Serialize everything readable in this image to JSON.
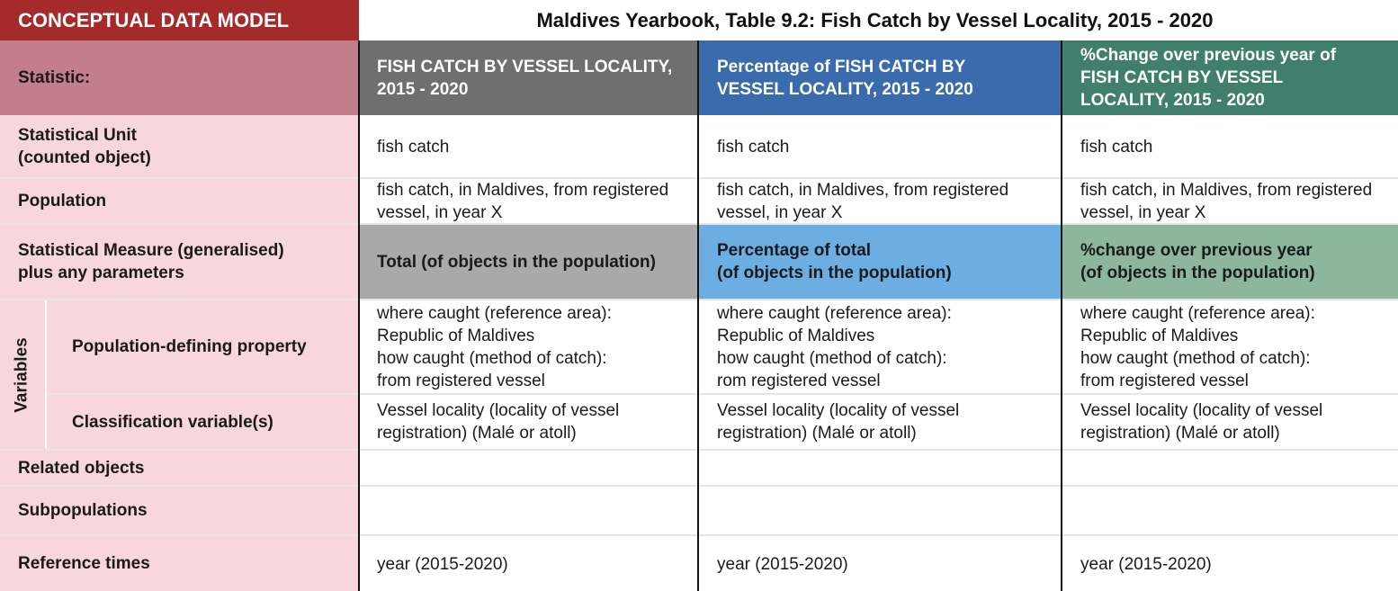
{
  "header": {
    "model_label": "CONCEPTUAL DATA MODEL",
    "title": "Maldives Yearbook, Table 9.2: Fish Catch by Vessel Locality, 2015 - 2020"
  },
  "colors": {
    "header_red": "#a52a2a",
    "statistic_row_label_bg": "#c27f8b",
    "row_label_bg": "#f7d6dc",
    "col1_header": "#6f6f6f",
    "col2_header": "#3a6cad",
    "col3_header": "#3f7f6b",
    "col1_measure": "#a9a9a9",
    "col2_measure": "#6daee2",
    "col3_measure": "#8cb79c"
  },
  "rows": {
    "statistic": "Statistic:",
    "unit": "Statistical Unit\n(counted object)",
    "population": "Population",
    "measure": "Statistical Measure (generalised)\nplus any parameters",
    "variables_group": "Variables",
    "pop_property": "Population-defining property",
    "classification": "Classification variable(s)",
    "related": "Related objects",
    "subpopulations": "Subpopulations",
    "reference_times": "Reference times"
  },
  "columns": [
    {
      "statistic": "FISH CATCH BY VESSEL LOCALITY,\n2015 -  2020",
      "unit": "fish catch",
      "population": "fish catch, in Maldives, from registered\nvessel, in year X",
      "measure": "Total (of objects in the population)",
      "pop_property": "where caught (reference area):\nRepublic of Maldives\nhow caught (method of catch):\nfrom registered vessel",
      "classification": "Vessel locality (locality of vessel\nregistration) (Malé or atoll)",
      "related": "",
      "subpopulations": "",
      "reference_times": "year (2015-2020)"
    },
    {
      "statistic": "Percentage of FISH CATCH BY\nVESSEL LOCALITY, 2015 -  2020",
      "unit": "fish catch",
      "population": "fish catch, in Maldives, from registered\nvessel, in year X",
      "measure": "Percentage of total\n(of objects in the population)",
      "pop_property": "where caught (reference area):\nRepublic of Maldives\nhow caught (method of catch):\nrom registered vessel",
      "classification": "Vessel locality (locality of vessel\nregistration) (Malé or atoll)",
      "related": "",
      "subpopulations": "",
      "reference_times": "year (2015-2020)"
    },
    {
      "statistic": "%Change over previous year of\nFISH CATCH BY VESSEL\nLOCALITY, 2015 -  2020",
      "unit": "fish catch",
      "population": "fish catch, in Maldives, from registered\nvessel, in year X",
      "measure": "%change over previous year\n(of objects in the population)",
      "pop_property": "where caught (reference area):\nRepublic of Maldives\nhow caught (method of catch):\nfrom registered vessel",
      "classification": "Vessel locality (locality of vessel\nregistration) (Malé or atoll)",
      "related": "",
      "subpopulations": "",
      "reference_times": "year (2015-2020)"
    }
  ]
}
